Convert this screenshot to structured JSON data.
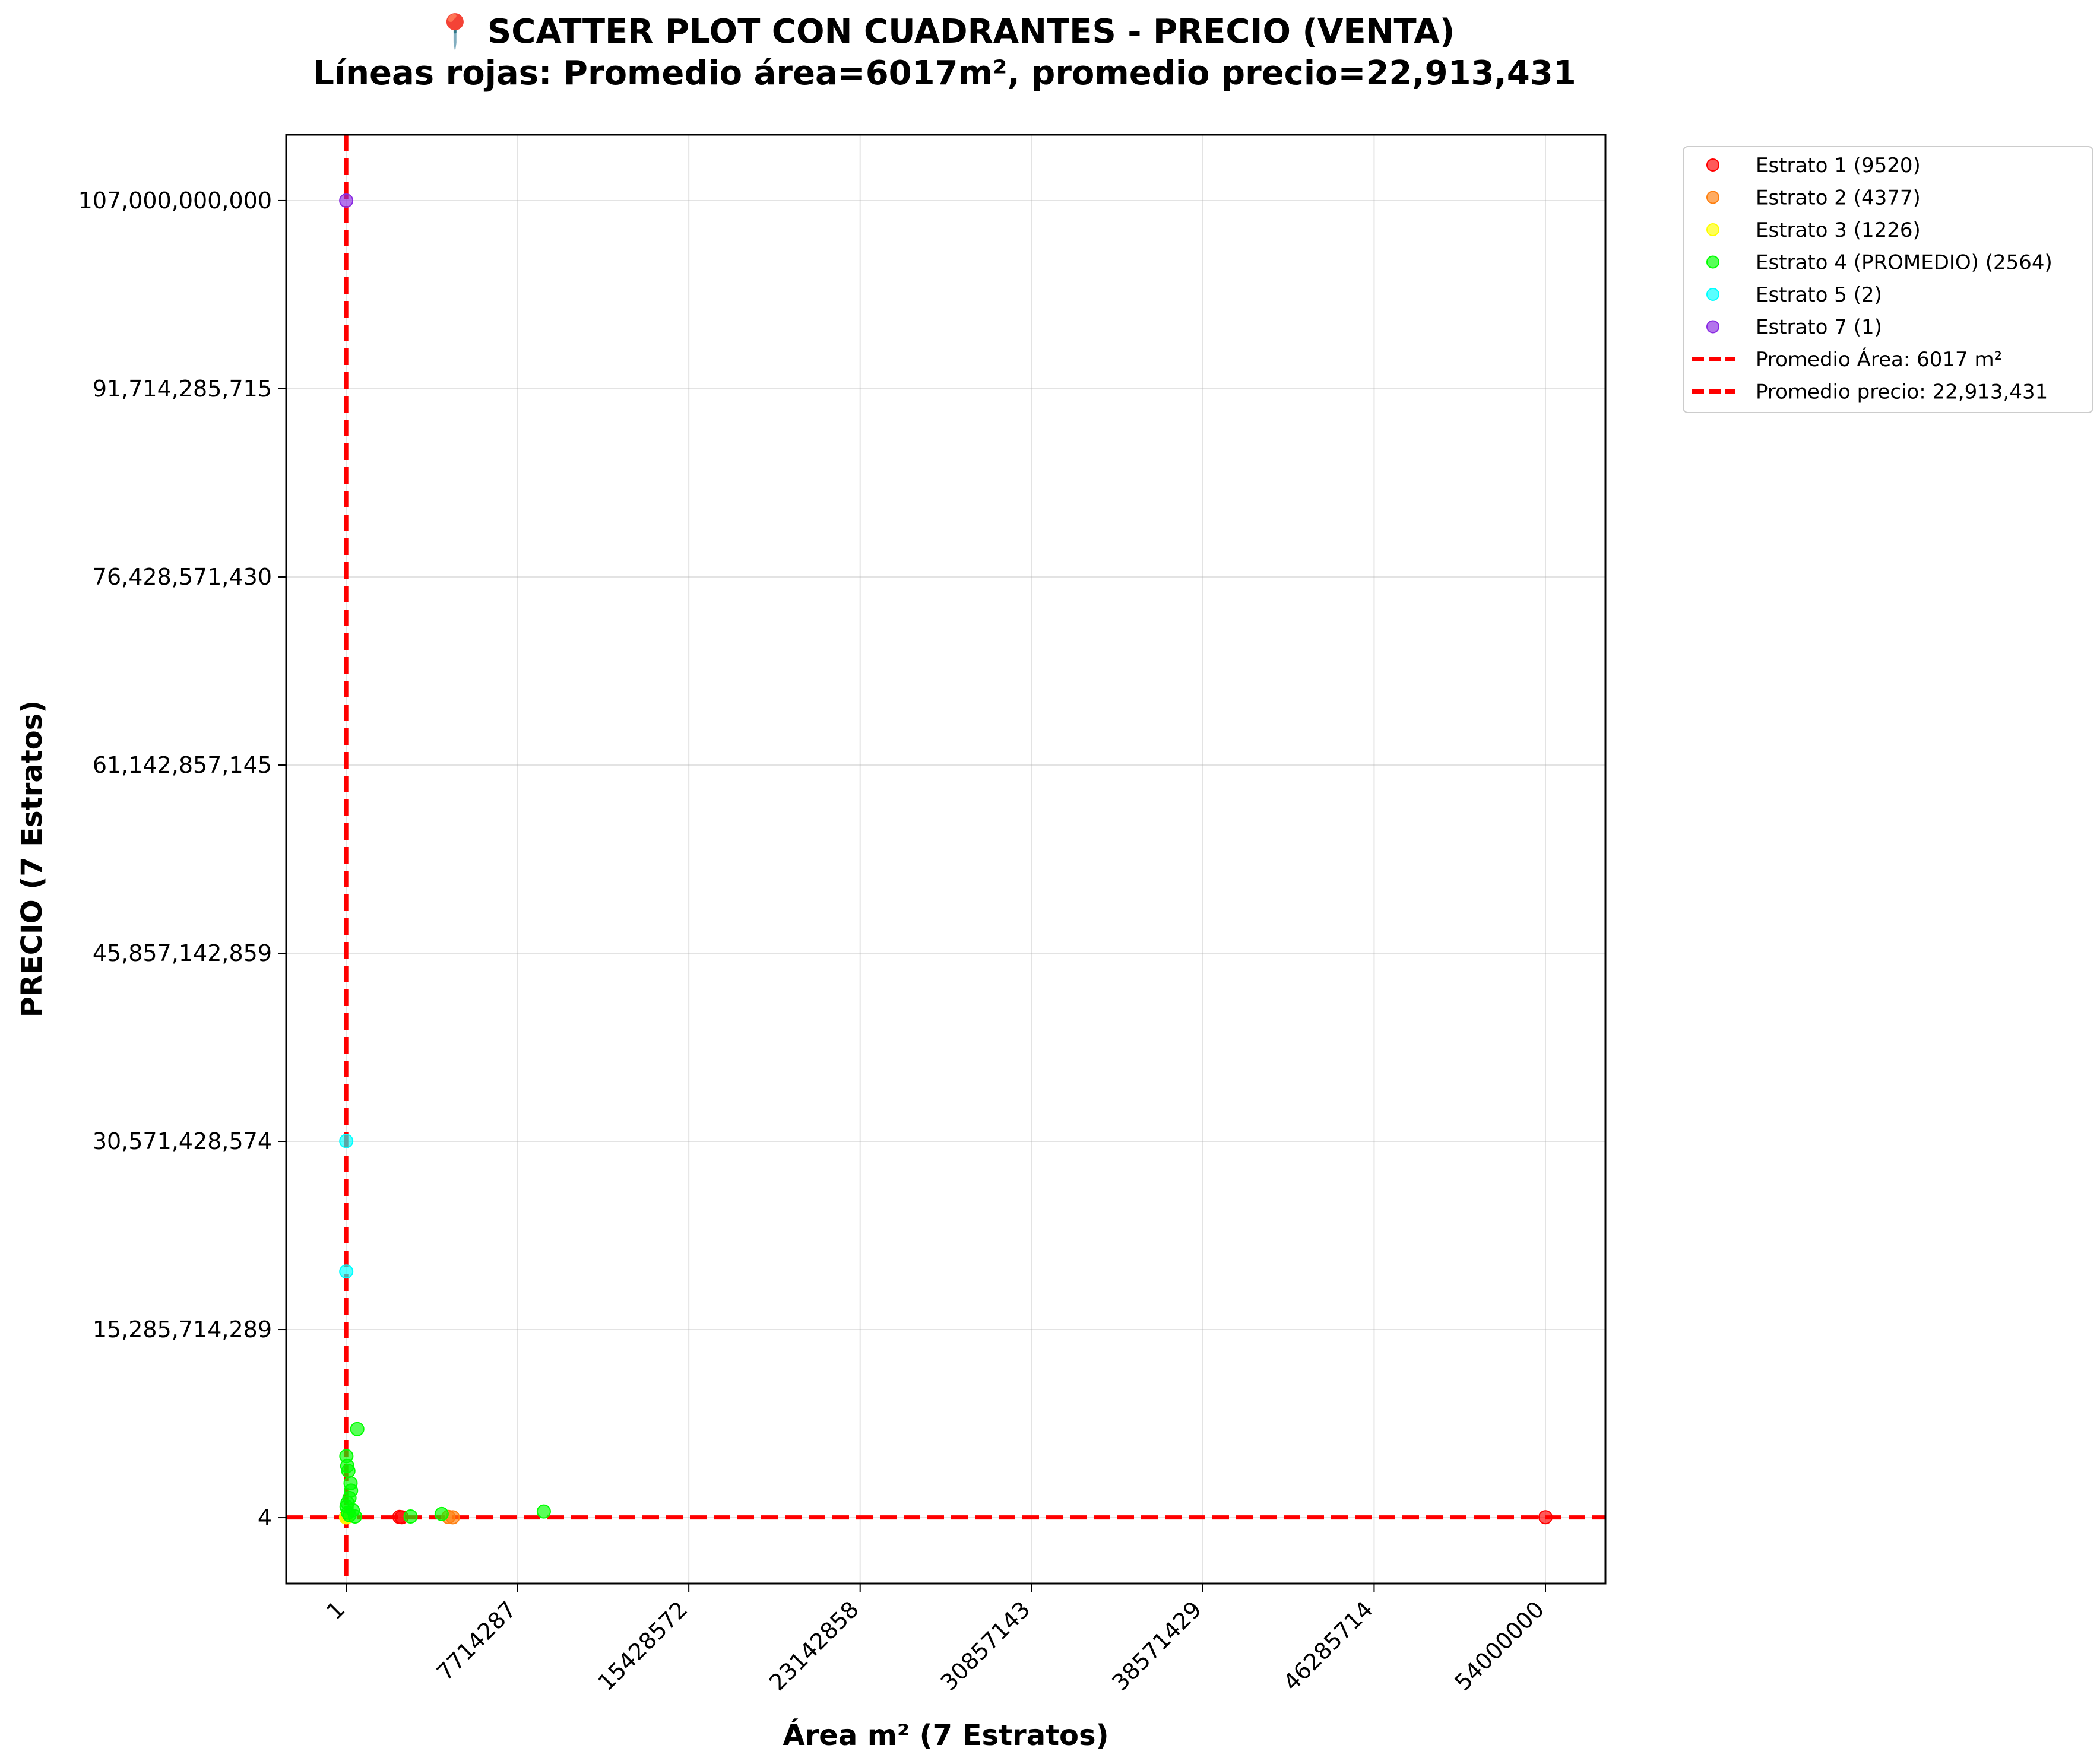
{
  "chart_data": {
    "type": "scatter",
    "title": "📍 SCATTER PLOT CON CUADRANTES - PRECIO (VENTA)",
    "subtitle": "Líneas rojas: Promedio área=6017m², promedio precio=22,913,431",
    "xlabel": "Área m² (7 Estratos)",
    "ylabel": "PRECIO (7 Estratos)",
    "xlim": [
      -2700000,
      56700000
    ],
    "ylim": [
      -5350000000,
      112350000000
    ],
    "x_ticks": [
      1,
      7714287,
      15428572,
      23142858,
      30857143,
      38571429,
      46285714,
      54000000
    ],
    "x_tick_labels": [
      "1",
      "7714287",
      "15428572",
      "23142858",
      "30857143",
      "38571429",
      "46285714",
      "54000000"
    ],
    "y_ticks": [
      4,
      15285714289,
      30571428574,
      45857142859,
      61142857145,
      76428571430,
      91714285715,
      107000000000
    ],
    "y_tick_labels": [
      "4",
      "15,285,714,289",
      "30,571,428,574",
      "45,857,142,859",
      "61,142,857,145",
      "76,428,571,430",
      "91,714,285,715",
      "107,000,000,000"
    ],
    "grid": true,
    "legend_position": "outside-top-right",
    "reference_lines": [
      {
        "name": "Promedio Área: 6017 m²",
        "orientation": "vertical",
        "value": 6017,
        "color": "#ff0000",
        "style": "dashed"
      },
      {
        "name": "Promedio precio: 22,913,431",
        "orientation": "horizontal",
        "value": 22913431,
        "color": "#ff0000",
        "style": "dashed"
      }
    ],
    "series": [
      {
        "name": "Estrato 1 (9520)",
        "color": "#ff0000",
        "points": [
          [
            1000,
            50000000
          ],
          [
            5000,
            100000000
          ],
          [
            2400000,
            60000000
          ],
          [
            2500000,
            40000000
          ],
          [
            54000000,
            40000000
          ],
          [
            3000,
            20000000
          ]
        ]
      },
      {
        "name": "Estrato 2 (4377)",
        "color": "#ff7f0e",
        "points": [
          [
            2000,
            30000000
          ],
          [
            8000,
            80000000
          ],
          [
            4800000,
            30000000
          ],
          [
            4600000,
            60000000
          ]
        ]
      },
      {
        "name": "Estrato 3 (1226)",
        "color": "#ffff00",
        "points": [
          [
            1500,
            25000000
          ],
          [
            4000,
            60000000
          ]
        ]
      },
      {
        "name": "Estrato 4 (PROMEDIO) (2564)",
        "color": "#00ff00",
        "points": [
          [
            500000,
            7200000000
          ],
          [
            10000,
            5000000000
          ],
          [
            50000,
            4200000000
          ],
          [
            100000,
            3800000000
          ],
          [
            200000,
            2800000000
          ],
          [
            150000,
            1600000000
          ],
          [
            300000,
            600000000
          ],
          [
            400000,
            100000000
          ],
          [
            20000,
            900000000
          ],
          [
            80000,
            400000000
          ],
          [
            2900000,
            100000000
          ],
          [
            4300000,
            300000000
          ],
          [
            8900000,
            500000000
          ],
          [
            150000,
            200000000
          ],
          [
            60000,
            1200000000
          ],
          [
            220000,
            2200000000
          ]
        ]
      },
      {
        "name": "Estrato 5 (2)",
        "color": "#00ffff",
        "points": [
          [
            5000,
            30600000000
          ],
          [
            5000,
            20000000000
          ]
        ]
      },
      {
        "name": "Estrato 7 (1)",
        "color": "#8a2be2",
        "points": [
          [
            3000,
            107000000000
          ]
        ]
      }
    ]
  }
}
